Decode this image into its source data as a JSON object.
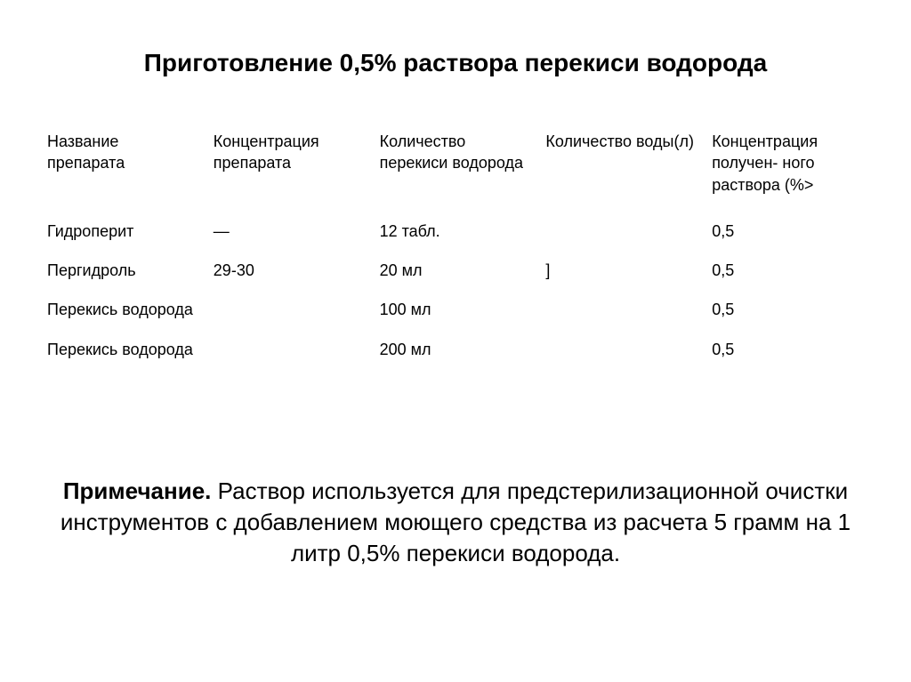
{
  "title": "Приготовление 0,5% раствора перекиси водорода",
  "table": {
    "columns": [
      "Название препарата",
      "Концентрация препарата",
      "Количество перекиси водорода",
      "Количество воды(л)",
      "Концентрация получен- ного раствора (%>"
    ],
    "column_widths": [
      "20%",
      "20%",
      "20%",
      "20%",
      "20%"
    ],
    "header_fontsize": 18,
    "cell_fontsize": 18,
    "rows": [
      [
        "Гидроперит",
        "—",
        "12 табл.",
        "",
        "0,5"
      ],
      [
        "Пергидроль",
        "29-30",
        "20 мл",
        "]",
        "0,5"
      ],
      [
        "Перекись водорода",
        "",
        "100 мл",
        "",
        "0,5"
      ],
      [
        "Перекись водорода",
        "",
        "200 мл",
        "",
        "0,5"
      ]
    ]
  },
  "note": {
    "label": "Примечание.",
    "text": "Раствор используется для предстерилизационной очистки инструментов с добавлением моющего средства из расчета 5 грамм на 1 литр 0,5% перекиси водорода."
  },
  "colors": {
    "background": "#ffffff",
    "text": "#000000"
  },
  "typography": {
    "title_fontsize": 28,
    "title_weight": "bold",
    "note_fontsize": 26,
    "font_family": "Arial"
  }
}
